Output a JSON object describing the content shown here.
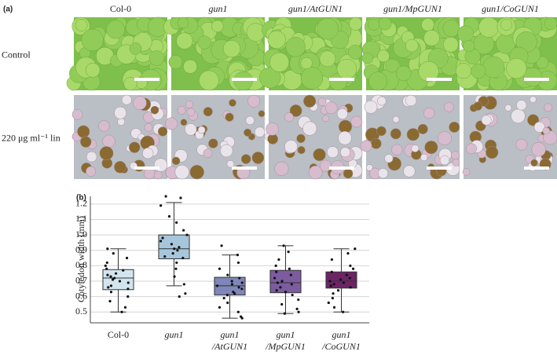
{
  "panel_a": {
    "label": "(a)",
    "columns": [
      "Col-0",
      "gun1",
      "gun1/AtGUN1",
      "gun1/MpGUN1",
      "gun1/CoGUN1"
    ],
    "rows": [
      "Control",
      "220 μg ml⁻¹ lin"
    ]
  },
  "chart_data": {
    "type": "box",
    "panel_label": "(b)",
    "y_label": "Cotyledon width (mm)",
    "categories": [
      "Col-0",
      "gun1",
      "gun1\n/AtGUN1",
      "gun1\n/MpGUN1",
      "gun1\n/CoGUN1"
    ],
    "ylim": [
      0.43,
      1.25
    ],
    "yticks": [
      0.5,
      0.6,
      0.7,
      0.8,
      0.9,
      {
        "value": 1,
        "label": "1.0"
      },
      1.1,
      1.2
    ],
    "grid": true,
    "series": [
      {
        "color": "#d3e5ef",
        "min": 0.5,
        "q1": 0.645,
        "median": 0.72,
        "q3": 0.775,
        "max": 0.91,
        "points": [
          0.91,
          0.88,
          0.85,
          0.82,
          0.8,
          0.78,
          0.77,
          0.75,
          0.74,
          0.73,
          0.72,
          0.71,
          0.7,
          0.69,
          0.67,
          0.66,
          0.65,
          0.63,
          0.6,
          0.57,
          0.53,
          0.5
        ]
      },
      {
        "color": "#a7c6dc",
        "min": 0.67,
        "q1": 0.845,
        "median": 0.91,
        "q3": 1.0,
        "max": 1.21,
        "points": [
          1.25,
          1.24,
          1.19,
          1.12,
          1.08,
          1.03,
          1.0,
          0.98,
          0.96,
          0.94,
          0.92,
          0.91,
          0.9,
          0.88,
          0.86,
          0.85,
          0.82,
          0.78,
          0.73,
          0.68,
          0.62,
          0.6
        ]
      },
      {
        "color": "#7f86b8",
        "min": 0.46,
        "q1": 0.61,
        "median": 0.67,
        "q3": 0.725,
        "max": 0.87,
        "points": [
          0.93,
          0.87,
          0.82,
          0.78,
          0.74,
          0.72,
          0.7,
          0.69,
          0.68,
          0.67,
          0.66,
          0.65,
          0.63,
          0.62,
          0.61,
          0.59,
          0.56,
          0.53,
          0.5,
          0.47,
          0.46
        ]
      },
      {
        "color": "#7c5c9f",
        "min": 0.49,
        "q1": 0.625,
        "median": 0.69,
        "q3": 0.77,
        "max": 0.93,
        "points": [
          0.93,
          0.89,
          0.84,
          0.8,
          0.78,
          0.76,
          0.74,
          0.72,
          0.7,
          0.69,
          0.68,
          0.66,
          0.64,
          0.63,
          0.61,
          0.58,
          0.55,
          0.52,
          0.5,
          0.49
        ]
      },
      {
        "color": "#6d2467",
        "min": 0.5,
        "q1": 0.655,
        "median": 0.7,
        "q3": 0.76,
        "max": 0.91,
        "points": [
          0.91,
          0.88,
          0.84,
          0.8,
          0.78,
          0.76,
          0.74,
          0.72,
          0.71,
          0.7,
          0.69,
          0.68,
          0.67,
          0.66,
          0.64,
          0.62,
          0.59,
          0.56,
          0.53,
          0.5
        ]
      }
    ]
  }
}
